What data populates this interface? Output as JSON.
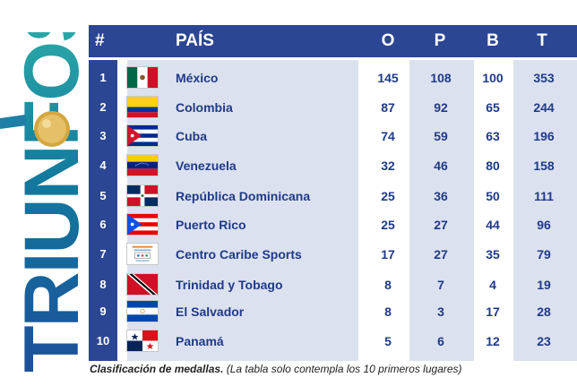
{
  "side_title": "TRIUNFOS",
  "table": {
    "headers": {
      "rank": "#",
      "country": "PAÍS",
      "gold": "O",
      "silver": "P",
      "bronze": "B",
      "total": "T"
    },
    "rows": [
      {
        "rank": "1",
        "country": "México",
        "gold": "145",
        "silver": "108",
        "bronze": "100",
        "total": "353",
        "flag": "mexico-flag"
      },
      {
        "rank": "2",
        "country": "Colombia",
        "gold": "87",
        "silver": "92",
        "bronze": "65",
        "total": "244",
        "flag": "colombia-flag"
      },
      {
        "rank": "3",
        "country": "Cuba",
        "gold": "74",
        "silver": "59",
        "bronze": "63",
        "total": "196",
        "flag": "cuba-flag"
      },
      {
        "rank": "4",
        "country": "Venezuela",
        "gold": "32",
        "silver": "46",
        "bronze": "80",
        "total": "158",
        "flag": "venezuela-flag"
      },
      {
        "rank": "5",
        "country": "República Dominicana",
        "gold": "25",
        "silver": "36",
        "bronze": "50",
        "total": "111",
        "flag": "dominican-republic-flag"
      },
      {
        "rank": "6",
        "country": "Puerto Rico",
        "gold": "25",
        "silver": "27",
        "bronze": "44",
        "total": "96",
        "flag": "puerto-rico-flag"
      },
      {
        "rank": "7",
        "country": "Centro Caribe Sports",
        "gold": "17",
        "silver": "27",
        "bronze": "35",
        "total": "79",
        "flag": "centro-caribe-sports-logo"
      },
      {
        "rank": "8",
        "country": "Trinidad y Tobago",
        "gold": "8",
        "silver": "7",
        "bronze": "4",
        "total": "19",
        "flag": "trinidad-tobago-flag"
      },
      {
        "rank": "9",
        "country": "El Salvador",
        "gold": "8",
        "silver": "3",
        "bronze": "17",
        "total": "28",
        "flag": "el-salvador-flag"
      },
      {
        "rank": "10",
        "country": "Panamá",
        "gold": "5",
        "silver": "6",
        "bronze": "12",
        "total": "23",
        "flag": "panama-flag"
      }
    ]
  },
  "footnote": {
    "bold": "Clasificación de medallas.",
    "rest": " (La tabla solo contempla los 10 primeros lugares)"
  },
  "colors": {
    "header_bg": "#2b4693",
    "column_bg": "#dce1ef",
    "text": "#1f3a88",
    "title_gradient": [
      "#1c4f9a",
      "#2aa6a7"
    ],
    "medal": "#d4a640"
  }
}
